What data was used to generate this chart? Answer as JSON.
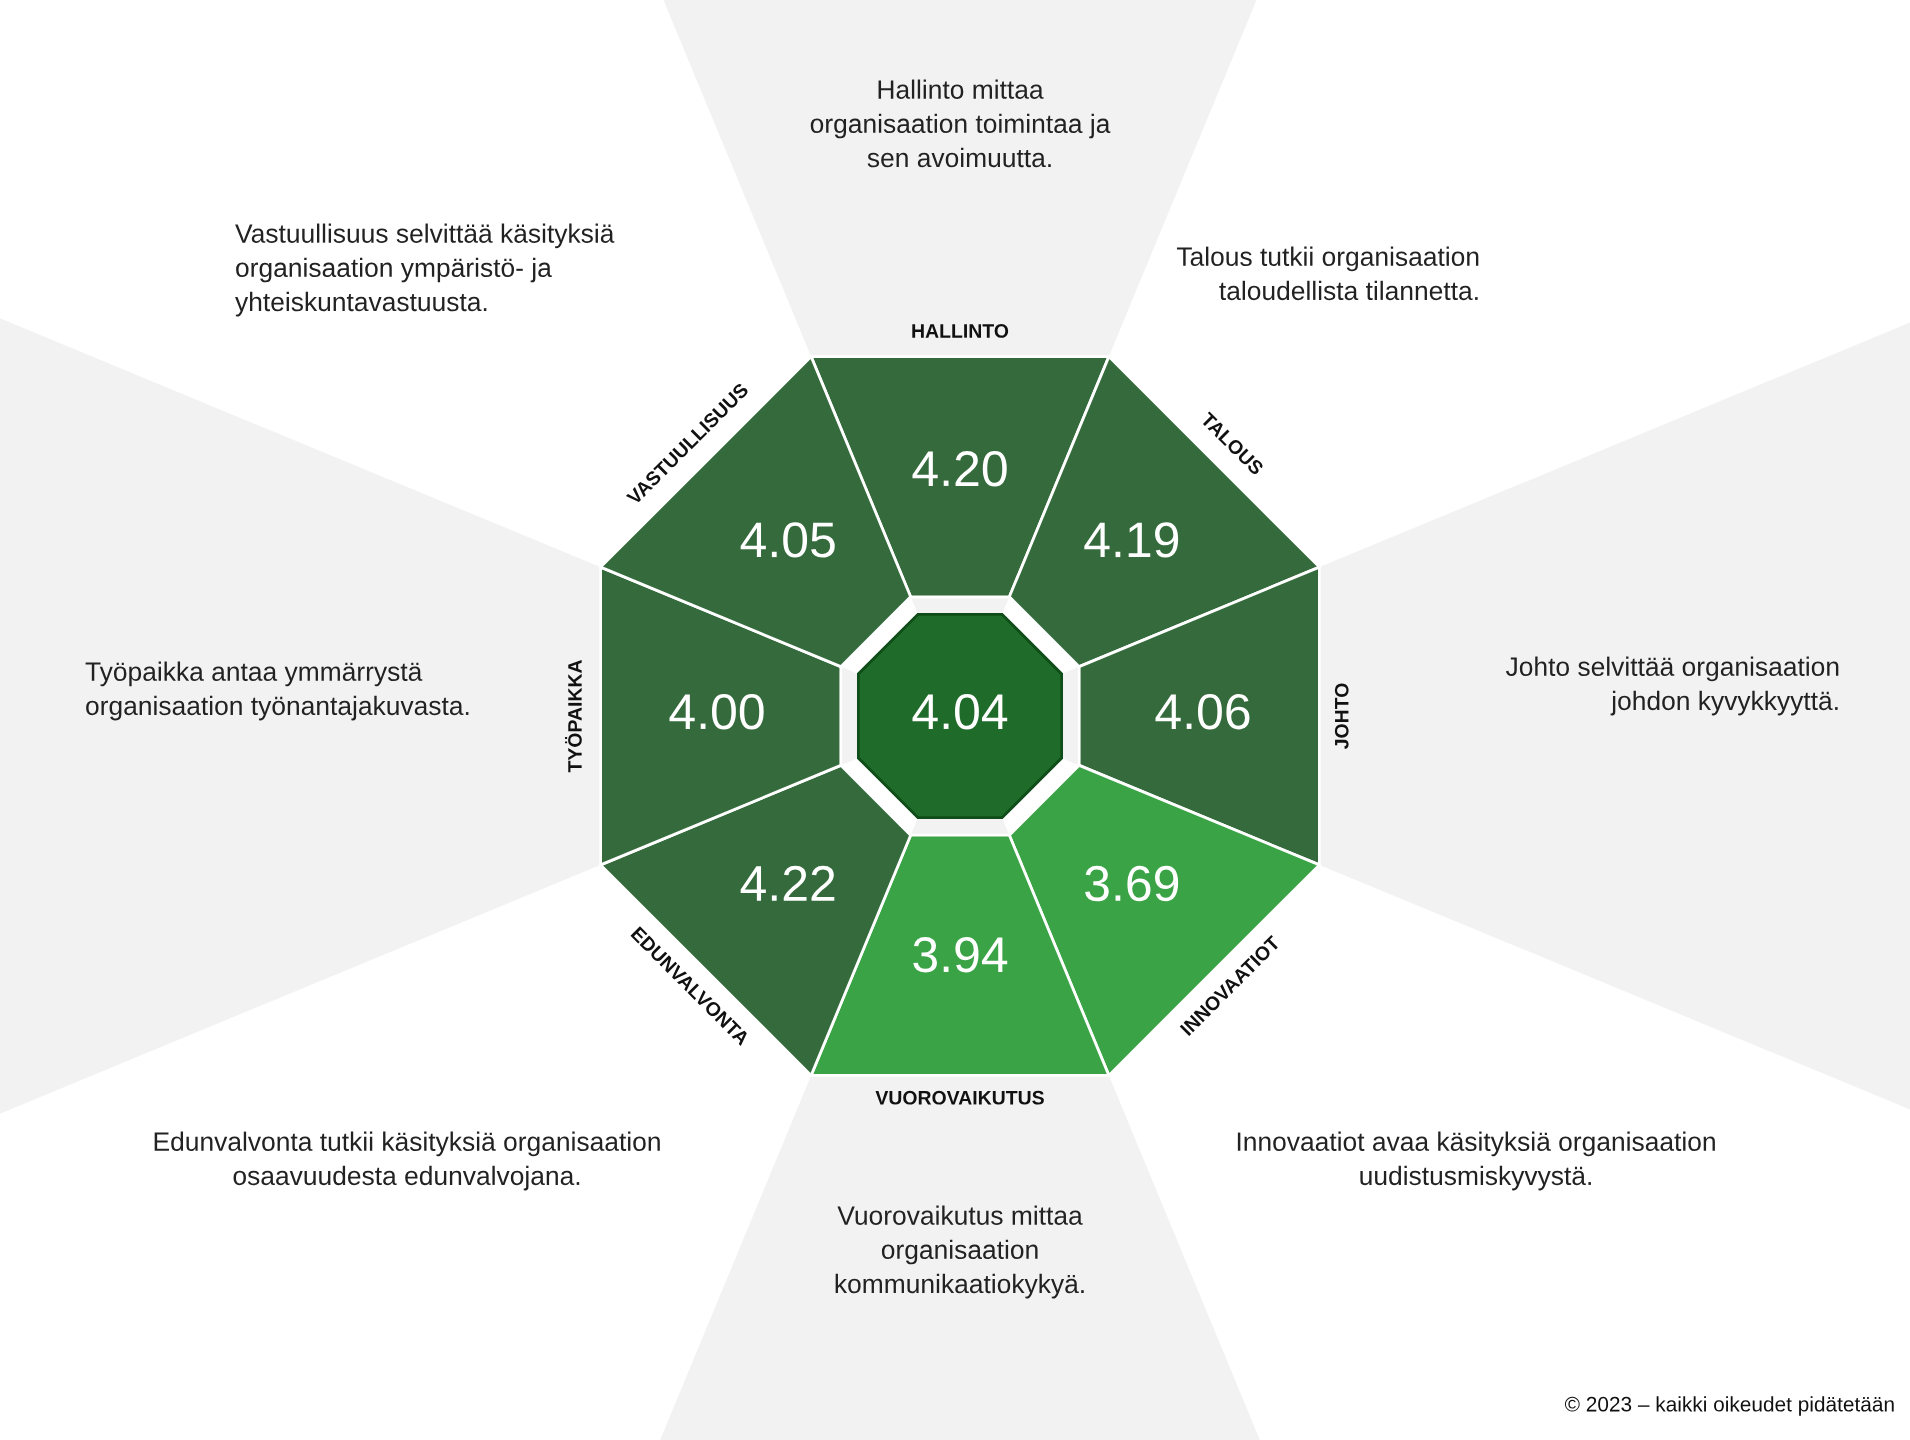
{
  "chart_data": {
    "type": "other",
    "categories": [
      "HALLINTO",
      "TALOUS",
      "JOHTO",
      "INNOVAATIOT",
      "VUOROVAIKUTUS",
      "EDUNVALVONTA",
      "TYÖPAIKKA",
      "VASTUULLISUUS"
    ],
    "values": [
      4.2,
      4.19,
      4.06,
      3.69,
      3.94,
      4.22,
      4.0,
      4.05
    ],
    "colors": [
      "#356b3c",
      "#356b3c",
      "#356b3c",
      "#3aa346",
      "#3aa346",
      "#356b3c",
      "#356b3c",
      "#356b3c"
    ],
    "value_labels": [
      "4.20",
      "4.19",
      "4.06",
      "3.69",
      "3.94",
      "4.22",
      "4.00",
      "4.05"
    ],
    "annotations": [
      "Hallinto mittaa\norganisaation toimintaa ja\nsen avoimuutta.",
      "Talous tutkii organisaation\ntaloudellista tilannetta.",
      "Johto selvittää organisaation\njohdon kyvykkyyttä.",
      "Innovaatiot avaa käsityksiä organisaation\nuudistusmiskyvystä.",
      "Vuorovaikutus mittaa\norganisaation\nkommunikaatiokykyä.",
      "Edunvalvonta tutkii käsityksiä organisaation\nosaavuudesta edunvalvojana.",
      "Työpaikka antaa ymmärrystä\norganisaation työnantajakuvasta.",
      "Vastuullisuus selvittää käsityksiä\norganisaation ympäristö- ja\nyhteiskuntavastuusta.",
      "4.04",
      "© 2023 – kaikki oikeudet pidätetään"
    ]
  }
}
